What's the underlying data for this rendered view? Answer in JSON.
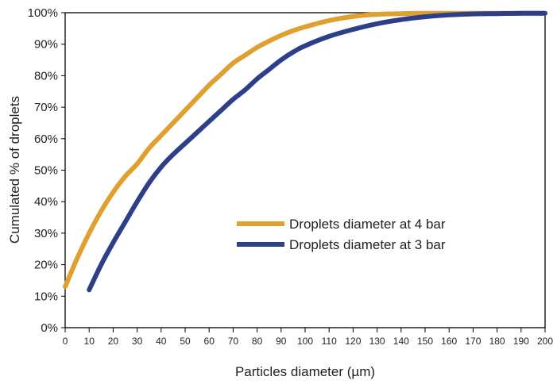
{
  "chart_data": {
    "type": "line",
    "xlabel": "Particles diameter (µm)",
    "ylabel": "Cumulated % of droplets",
    "xlim": [
      0,
      200
    ],
    "ylim": [
      0,
      100
    ],
    "x_ticks": [
      0,
      10,
      20,
      30,
      40,
      50,
      60,
      70,
      80,
      90,
      100,
      110,
      120,
      130,
      140,
      150,
      160,
      170,
      180,
      190,
      200
    ],
    "y_ticks": [
      0,
      10,
      20,
      30,
      40,
      50,
      60,
      70,
      80,
      90,
      100
    ],
    "y_tick_labels": [
      "0%",
      "10%",
      "20%",
      "30%",
      "40%",
      "50%",
      "60%",
      "70%",
      "80%",
      "90%",
      "100%"
    ],
    "grid": false,
    "legend_position": "center-right",
    "series": [
      {
        "name": "Droplets diameter at 4 bar",
        "color": "#E0A030",
        "x": [
          0,
          5,
          10,
          15,
          20,
          25,
          30,
          35,
          40,
          45,
          50,
          55,
          60,
          65,
          70,
          75,
          80,
          85,
          90,
          95,
          100,
          110,
          120,
          130,
          140,
          150,
          160,
          170,
          180,
          190,
          200
        ],
        "y": [
          13,
          22,
          30,
          37,
          43,
          48,
          52,
          57,
          61,
          65,
          69,
          73,
          77,
          80.5,
          84,
          86.5,
          89,
          91,
          92.8,
          94.3,
          95.5,
          97.5,
          98.8,
          99.5,
          99.7,
          99.8,
          99.8,
          99.8,
          99.8,
          99.8,
          99.8
        ]
      },
      {
        "name": "Droplets diameter at 3 bar",
        "color": "#2E3F8A",
        "x": [
          10,
          15,
          20,
          25,
          30,
          35,
          40,
          45,
          50,
          55,
          60,
          65,
          70,
          75,
          80,
          85,
          90,
          95,
          100,
          110,
          120,
          130,
          140,
          150,
          160,
          170,
          180,
          190,
          200
        ],
        "y": [
          12,
          20,
          27,
          33.5,
          40,
          46,
          51,
          55,
          58.5,
          62,
          65.5,
          69,
          72.5,
          75.5,
          79,
          82,
          85,
          87.5,
          89.5,
          92.5,
          94.7,
          96.5,
          97.8,
          98.7,
          99.3,
          99.6,
          99.7,
          99.8,
          99.8
        ]
      }
    ]
  }
}
